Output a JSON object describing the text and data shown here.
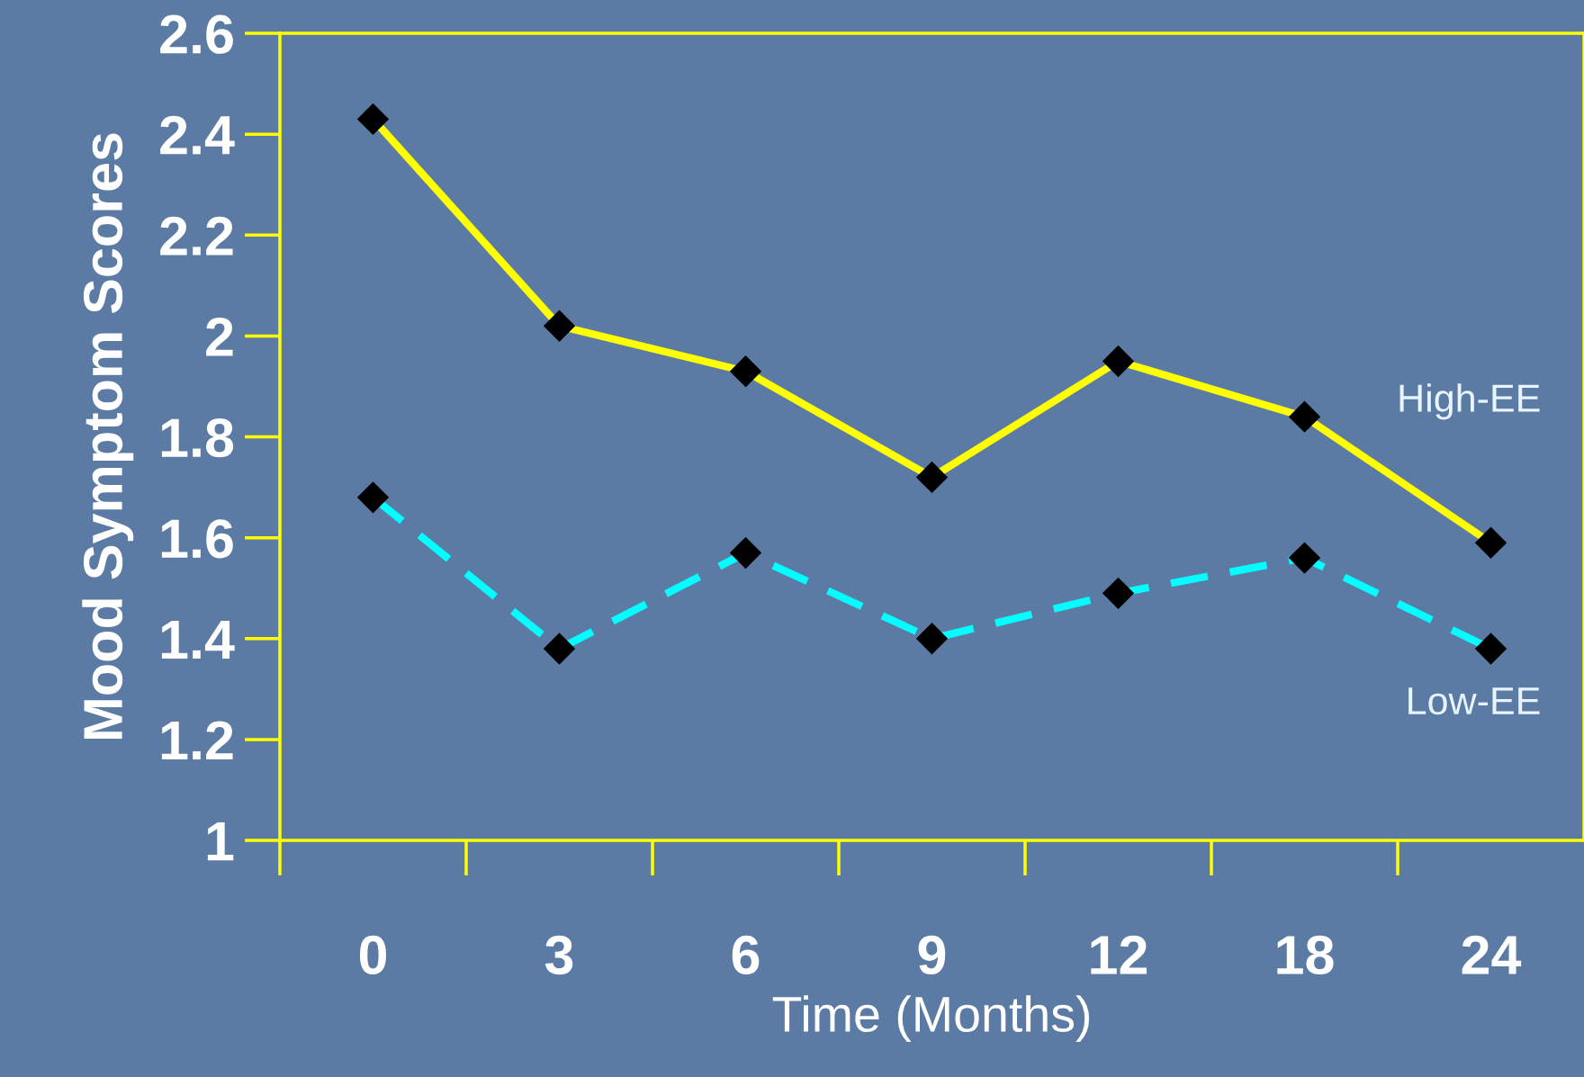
{
  "chart_data": {
    "type": "line",
    "xlabel": "Time (Months)",
    "ylabel": "Mood Symptom Scores",
    "categories": [
      "0",
      "3",
      "6",
      "9",
      "12",
      "18",
      "24"
    ],
    "series": [
      {
        "name": "High-EE",
        "color": "#ffff00",
        "line_style": "solid",
        "values": [
          2.43,
          2.02,
          1.93,
          1.72,
          1.95,
          1.84,
          1.59
        ]
      },
      {
        "name": "Low-EE",
        "color": "#00ffff",
        "line_style": "dashed",
        "values": [
          1.68,
          1.38,
          1.57,
          1.4,
          1.49,
          1.56,
          1.38
        ]
      }
    ],
    "ylim": [
      1,
      2.6
    ],
    "yticks": [
      1,
      1.2,
      1.4,
      1.6,
      1.8,
      2,
      2.2,
      2.4,
      2.6
    ],
    "marker": "diamond",
    "grid": false,
    "legend": false
  }
}
